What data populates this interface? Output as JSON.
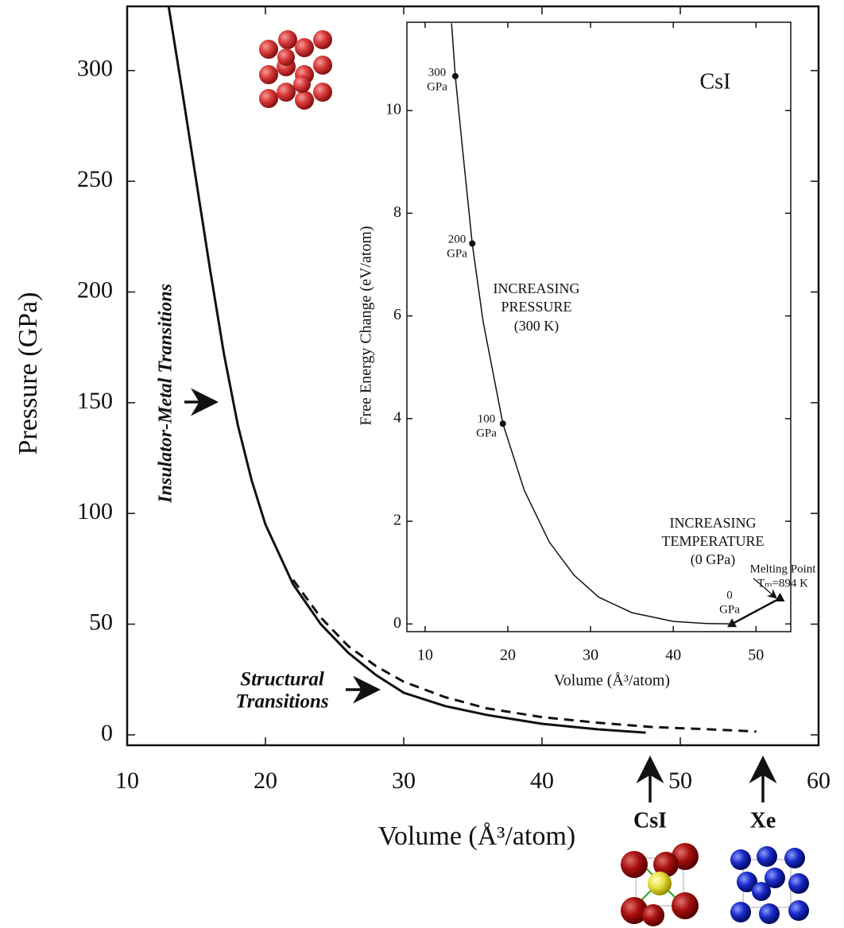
{
  "chart_data": [
    {
      "type": "line",
      "xlabel": "Volume (Å³/atom)",
      "ylabel": "Pressure (GPa)",
      "xlim": [
        10,
        60
      ],
      "ylim": [
        -4.7,
        329
      ],
      "xticks": [
        10,
        20,
        30,
        40,
        50,
        60
      ],
      "yticks": [
        0,
        50,
        100,
        150,
        200,
        250,
        300
      ],
      "series": [
        {
          "color": "#111111",
          "line_style": "solid",
          "x": [
            13,
            14,
            15,
            16,
            17,
            18,
            19,
            20,
            22,
            24,
            26,
            28,
            30,
            33,
            36,
            40,
            44,
            47.5
          ],
          "y": [
            329,
            290,
            250,
            210,
            172,
            140,
            115,
            95,
            68,
            50,
            37,
            27,
            19,
            13,
            9,
            5,
            2.5,
            1
          ]
        },
        {
          "color": "#111111",
          "line_style": "dashed",
          "x": [
            22,
            24,
            26,
            28,
            30,
            33,
            36,
            40,
            44,
            48,
            52,
            55.5
          ],
          "y": [
            70,
            53,
            40,
            31,
            24,
            17,
            12,
            8,
            5.5,
            3.5,
            2.5,
            1.5
          ]
        }
      ],
      "annotations": [
        "Insulator-Metal Transitions",
        "Structural",
        "Transitions",
        "CsI",
        "Xe"
      ]
    },
    {
      "type": "line",
      "xlabel": "Volume (Å³/atom)",
      "ylabel": "Free Energy Change (eV/atom)",
      "xlim": [
        7.8,
        54.2
      ],
      "ylim": [
        -0.15,
        11.72
      ],
      "xticks": [
        10,
        20,
        30,
        40,
        50
      ],
      "yticks": [
        0,
        2,
        4,
        6,
        8,
        10
      ],
      "series": [
        {
          "color": "#111111",
          "line_style": "solid",
          "x": [
            13.2,
            13.65,
            14.5,
            15.7,
            17,
            19.4,
            22,
            25,
            28,
            31,
            35,
            40,
            44,
            47.1
          ],
          "y": [
            11.7,
            10.67,
            9.3,
            7.41,
            5.9,
            3.9,
            2.6,
            1.6,
            0.95,
            0.52,
            0.22,
            0.05,
            0.01,
            0
          ]
        },
        {
          "color": "#111111",
          "line_style": "solid",
          "x": [
            47.1,
            52.9
          ],
          "y": [
            0,
            0.5
          ]
        }
      ],
      "markers": [
        {
          "x": 13.65,
          "y": 10.67,
          "shape": "circle",
          "label_lines": [
            "300",
            "GPa"
          ]
        },
        {
          "x": 15.7,
          "y": 7.41,
          "shape": "circle",
          "label_lines": [
            "200",
            "GPa"
          ]
        },
        {
          "x": 19.4,
          "y": 3.9,
          "shape": "circle",
          "label_lines": [
            "100",
            "GPa"
          ]
        },
        {
          "x": 47.1,
          "y": 0,
          "shape": "triangle",
          "label_lines": [
            "0",
            "GPa"
          ]
        },
        {
          "x": 52.9,
          "y": 0.5,
          "shape": "triangle",
          "label_lines": [
            "Melting Point",
            "Tₘ=894 K"
          ]
        }
      ],
      "annotations": [
        "CsI",
        "INCREASING",
        "PRESSURE",
        "(300 K)",
        "INCREASING",
        "TEMPERATURE",
        "(0 GPa)"
      ]
    }
  ]
}
